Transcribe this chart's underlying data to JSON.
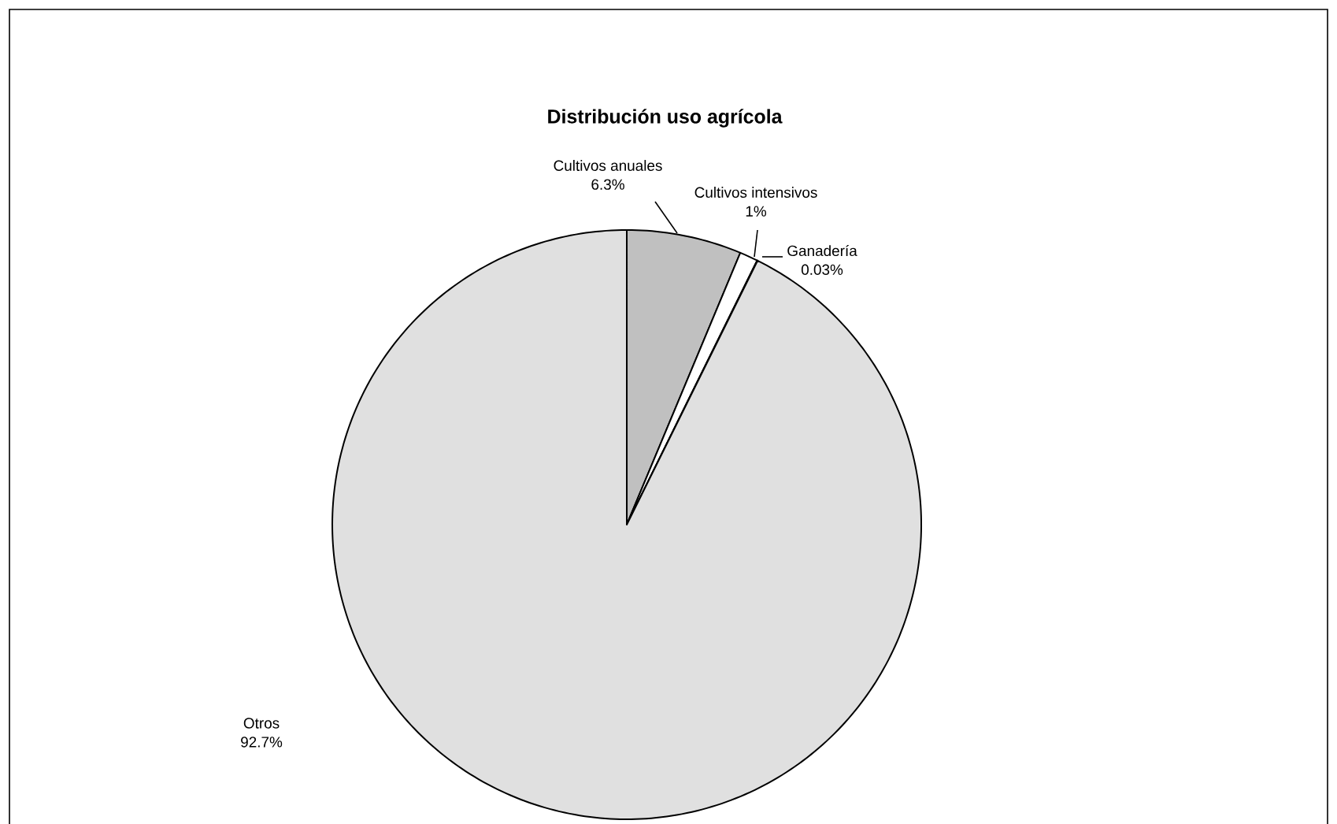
{
  "chart_data": {
    "type": "pie",
    "title": "Distribución uso agrícola",
    "categories": [
      "Cultivos anuales",
      "Cultivos intensivos",
      "Ganadería",
      "Otros"
    ],
    "values": [
      6.3,
      1,
      0.03,
      92.7
    ],
    "colors": [
      "#c0c0c0",
      "#ffffff",
      "#333333",
      "#e0e0e0"
    ],
    "value_labels": [
      "6.3%",
      "1%",
      "0.03%",
      "92.7%"
    ]
  }
}
